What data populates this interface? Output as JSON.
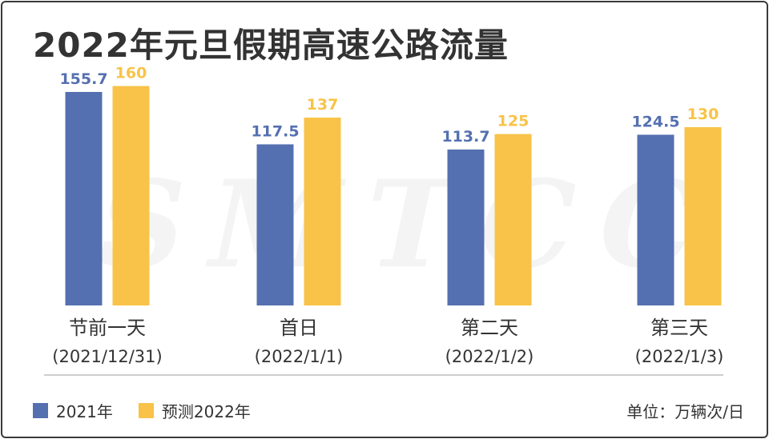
{
  "title": "2022年元旦假期高速公路流量",
  "watermark": "SMTCC",
  "unit": "单位：万辆次/日",
  "colors": {
    "series_2021": "#5570b0",
    "series_2022": "#f8c348",
    "baseline": "#bdbdbd"
  },
  "chart_data": {
    "type": "bar",
    "categories": [
      "节前一天",
      "首日",
      "第二天",
      "第三天"
    ],
    "dates": [
      "(2021/12/31)",
      "(2022/1/1)",
      "(2022/1/2)",
      "(2022/1/3)"
    ],
    "series": [
      {
        "name": "2021年",
        "values": [
          155.7,
          117.5,
          113.7,
          124.5
        ]
      },
      {
        "name": "预测2022年",
        "values": [
          160,
          137,
          125,
          130
        ]
      }
    ],
    "value_labels": [
      [
        "155.7",
        "117.5",
        "113.7",
        "124.5"
      ],
      [
        "160",
        "137",
        "125",
        "130"
      ]
    ],
    "legend_position": "bottom-left",
    "grid": false
  }
}
